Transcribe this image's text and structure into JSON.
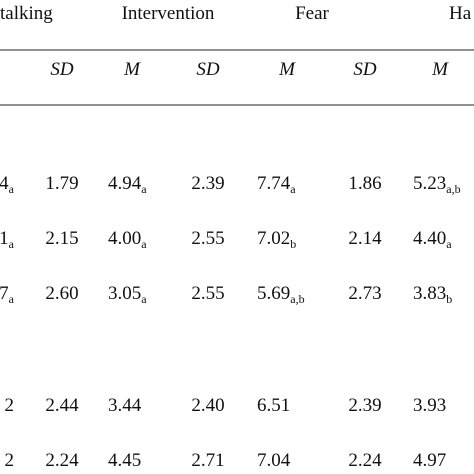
{
  "header": {
    "groups": [
      "talking",
      "Intervention",
      "Fear",
      "Ha"
    ],
    "subheaders": [
      "SD",
      "M",
      "SD",
      "M",
      "SD",
      "M"
    ]
  },
  "table": {
    "rows": [
      [
        {
          "text": "4",
          "sub": "a"
        },
        {
          "text": "1.79"
        },
        {
          "text": "4.94",
          "sub": "a"
        },
        {
          "text": "2.39"
        },
        {
          "text": "7.74",
          "sub": "a"
        },
        {
          "text": "1.86"
        },
        {
          "text": "5.23",
          "sub": "a,b"
        }
      ],
      [
        {
          "text": "1",
          "sub": "a"
        },
        {
          "text": "2.15"
        },
        {
          "text": "4.00",
          "sub": "a"
        },
        {
          "text": "2.55"
        },
        {
          "text": "7.02",
          "sub": "b"
        },
        {
          "text": "2.14"
        },
        {
          "text": "4.40",
          "sub": "a"
        }
      ],
      [
        {
          "text": "7",
          "sub": "a"
        },
        {
          "text": "2.60"
        },
        {
          "text": "3.05",
          "sub": "a"
        },
        {
          "text": "2.55"
        },
        {
          "text": "5.69",
          "sub": "a,b"
        },
        {
          "text": "2.73"
        },
        {
          "text": "3.83",
          "sub": "b"
        }
      ],
      [
        {
          "text": "2"
        },
        {
          "text": "2.44"
        },
        {
          "text": "3.44"
        },
        {
          "text": "2.40"
        },
        {
          "text": "6.51"
        },
        {
          "text": "2.39"
        },
        {
          "text": "3.93"
        }
      ],
      [
        {
          "text": "2"
        },
        {
          "text": "2.24"
        },
        {
          "text": "4.45"
        },
        {
          "text": "2.71"
        },
        {
          "text": "7.04"
        },
        {
          "text": "2.24"
        },
        {
          "text": "4.97"
        }
      ]
    ]
  }
}
